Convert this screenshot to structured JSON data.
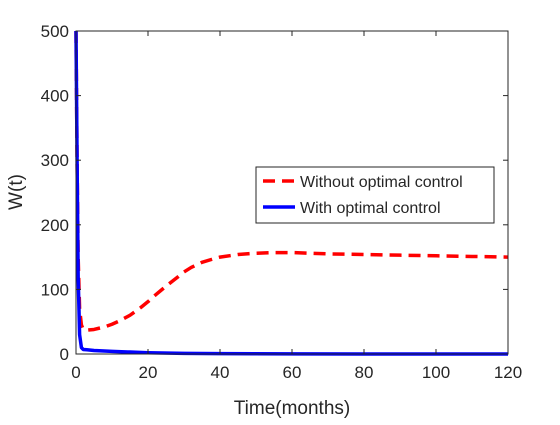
{
  "chart_data": {
    "type": "line",
    "title": "",
    "xlabel": "Time(months)",
    "ylabel": "W(t)",
    "xlim": [
      0,
      120
    ],
    "ylim": [
      0,
      500
    ],
    "x_ticks": [
      0,
      20,
      40,
      60,
      80,
      100,
      120
    ],
    "y_ticks": [
      0,
      100,
      200,
      300,
      400,
      500
    ],
    "grid": false,
    "legend_position": "center-right",
    "series": [
      {
        "name": "Without optimal control",
        "color": "#ff0000",
        "style": "dashed",
        "x": [
          0,
          0.3,
          0.6,
          1,
          1.5,
          2,
          3,
          5,
          8,
          10,
          12,
          15,
          18,
          20,
          22,
          25,
          28,
          30,
          32,
          35,
          38,
          40,
          45,
          50,
          55,
          60,
          65,
          70,
          80,
          90,
          100,
          110,
          120
        ],
        "y": [
          500,
          300,
          150,
          70,
          45,
          38,
          37,
          38,
          42,
          46,
          51,
          60,
          72,
          81,
          91,
          105,
          118,
          127,
          134,
          142,
          147,
          150,
          154,
          156,
          157,
          157,
          156,
          155,
          154,
          153,
          152,
          151,
          150
        ]
      },
      {
        "name": "With optimal control",
        "color": "#0000ff",
        "style": "solid",
        "x": [
          0,
          0.3,
          0.6,
          1,
          1.5,
          2,
          3,
          5,
          10,
          15,
          20,
          30,
          40,
          60,
          80,
          100,
          120
        ],
        "y": [
          500,
          300,
          120,
          30,
          10,
          7,
          6.5,
          5.5,
          4,
          3,
          2,
          1,
          0.5,
          0.2,
          0.1,
          0.1,
          0.1
        ]
      }
    ]
  }
}
